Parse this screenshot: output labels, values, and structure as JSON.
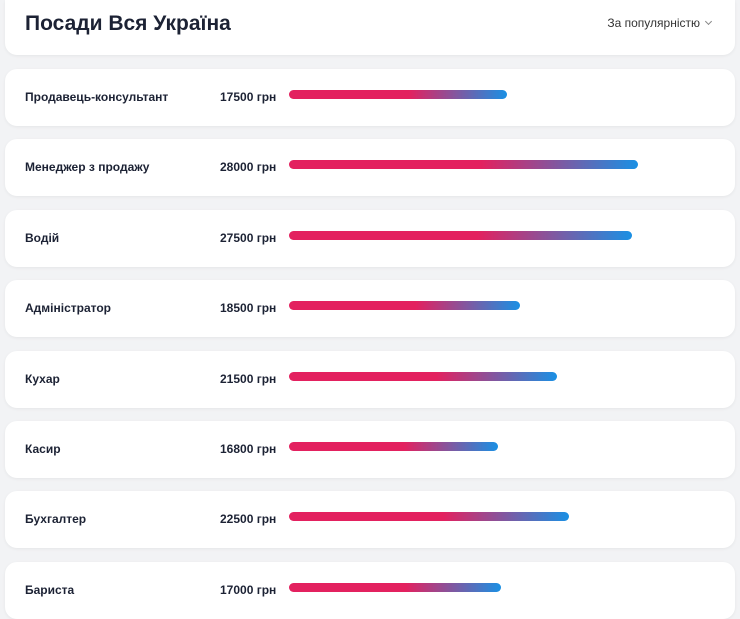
{
  "header": {
    "title": "Посади Вся Україна",
    "sort_label": "За популярністю"
  },
  "colors": {
    "bar_start": "#e3215f",
    "bar_end": "#1a90e4"
  },
  "currency": "грн",
  "positions": [
    {
      "name": "Продавець-консультант",
      "salary": 17500,
      "salary_text": "17500 грн"
    },
    {
      "name": "Менеджер з продажу",
      "salary": 28000,
      "salary_text": "28000 грн"
    },
    {
      "name": "Водій",
      "salary": 27500,
      "salary_text": "27500 грн"
    },
    {
      "name": "Адміністратор",
      "salary": 18500,
      "salary_text": "18500 грн"
    },
    {
      "name": "Кухар",
      "salary": 21500,
      "salary_text": "21500 грн"
    },
    {
      "name": "Касир",
      "salary": 16800,
      "salary_text": "16800 грн"
    },
    {
      "name": "Бухгалтер",
      "salary": 22500,
      "salary_text": "22500 грн"
    },
    {
      "name": "Бариста",
      "salary": 17000,
      "salary_text": "17000 грн"
    }
  ]
}
